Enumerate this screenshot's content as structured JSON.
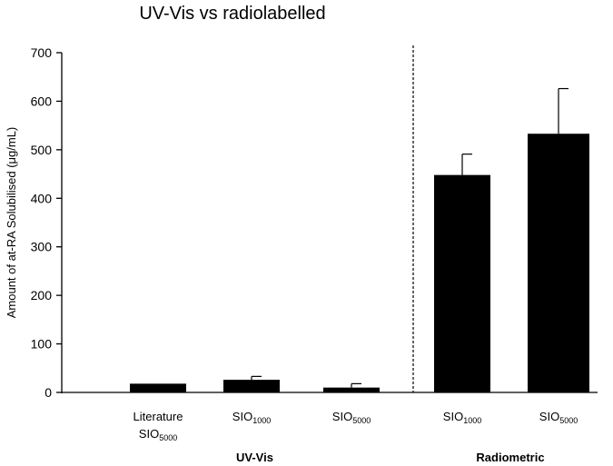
{
  "chart_data": {
    "type": "bar",
    "title": "UV-Vis vs radiolabelled",
    "ylabel": "Amount of at-RA Solubilised (μg/mL)",
    "xlabel": "",
    "ylim": [
      0,
      700
    ],
    "yticks": [
      0,
      100,
      200,
      300,
      400,
      500,
      600,
      700
    ],
    "categories": [
      {
        "line1": "Literature",
        "base": "SIO",
        "sub": "5000"
      },
      {
        "line1": "",
        "base": "SIO",
        "sub": "1000"
      },
      {
        "line1": "",
        "base": "SIO",
        "sub": "5000"
      },
      {
        "line1": "",
        "base": "SIO",
        "sub": "1000"
      },
      {
        "line1": "",
        "base": "SIO",
        "sub": "5000"
      }
    ],
    "values": [
      18,
      26,
      10,
      448,
      533
    ],
    "errors": [
      0,
      7,
      8,
      43,
      93
    ],
    "groups": [
      {
        "label": "UV-Vis",
        "categories": [
          0,
          1,
          2
        ]
      },
      {
        "label": "Radiometric",
        "categories": [
          3,
          4
        ]
      }
    ],
    "bar_color": "#000000",
    "separator": "dashed vertical line between UV-Vis and Radiometric groups",
    "grid": false,
    "legend": "none"
  }
}
